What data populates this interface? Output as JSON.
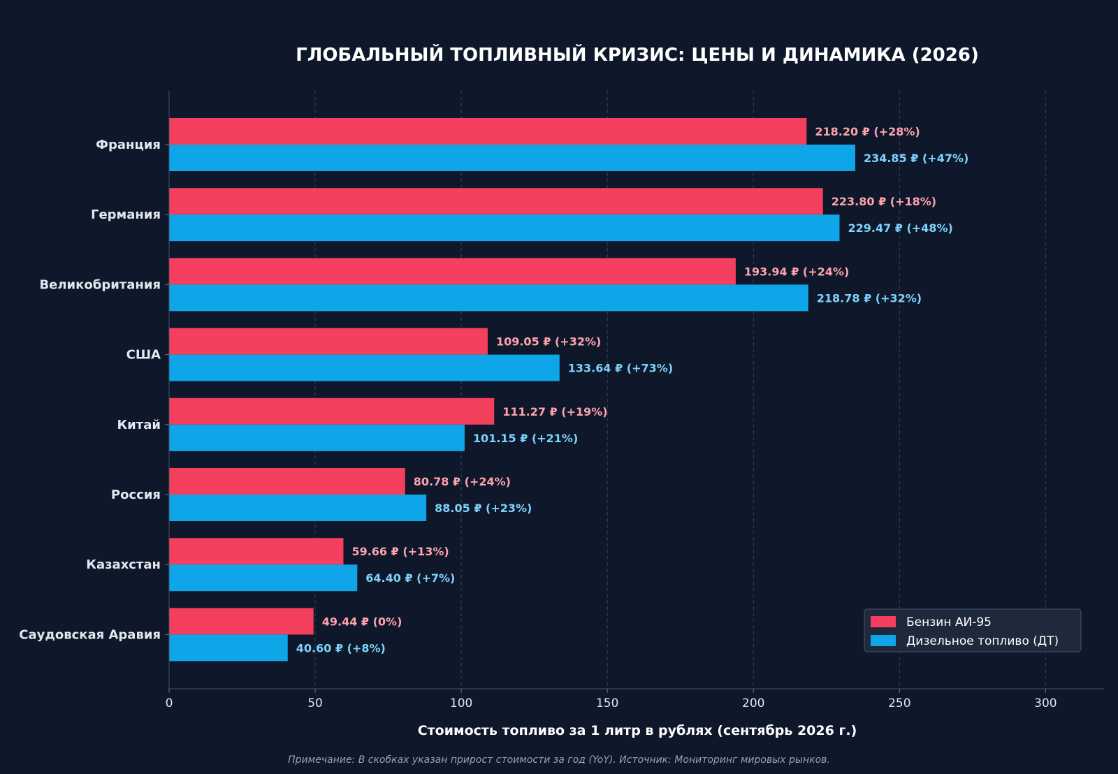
{
  "chart_data": {
    "type": "bar",
    "orientation": "horizontal",
    "title": "ГЛОБАЛЬНЫЙ ТОПЛИВНЫЙ КРИЗИС: ЦЕНЫ И ДИНАМИКА (2026)",
    "xlabel": "Стоимость топливо за 1 литр в рублях (сентябрь 2026 г.)",
    "ylabel": "",
    "note": "Примечание: В скобках указан прирост стоимости за год (YoY). Источник: Мониторинг мировых рынков.",
    "xlim": [
      0,
      320
    ],
    "xticks": [
      0,
      50,
      100,
      150,
      200,
      250,
      300
    ],
    "grid": "vertical dashed",
    "legend_position": "bottom-right",
    "categories": [
      "Франция",
      "Германия",
      "Великобритания",
      "США",
      "Китай",
      "Россия",
      "Казахстан",
      "Саудовская Аравия"
    ],
    "series": [
      {
        "name": "Бензин АИ-95",
        "color": "#f43f5e",
        "label_color": "#fda4af",
        "values": [
          218.2,
          223.8,
          193.94,
          109.05,
          111.27,
          80.78,
          59.66,
          49.44
        ],
        "labels": [
          "218.20 ₽ (+28%)",
          "223.80 ₽ (+18%)",
          "193.94 ₽ (+24%)",
          "109.05 ₽ (+32%)",
          "111.27 ₽ (+19%)",
          "80.78 ₽ (+24%)",
          "59.66 ₽ (+13%)",
          "49.44 ₽ (0%)"
        ]
      },
      {
        "name": "Дизельное топливо (ДТ)",
        "color": "#0ea5e9",
        "label_color": "#7dd3fc",
        "values": [
          234.85,
          229.47,
          218.78,
          133.64,
          101.15,
          88.05,
          64.4,
          40.6
        ],
        "labels": [
          "234.85 ₽ (+47%)",
          "229.47 ₽ (+48%)",
          "218.78 ₽ (+32%)",
          "133.64 ₽ (+73%)",
          "101.15 ₽ (+21%)",
          "88.05 ₽ (+23%)",
          "64.40 ₽ (+7%)",
          "40.60 ₽ (+8%)"
        ]
      }
    ]
  }
}
